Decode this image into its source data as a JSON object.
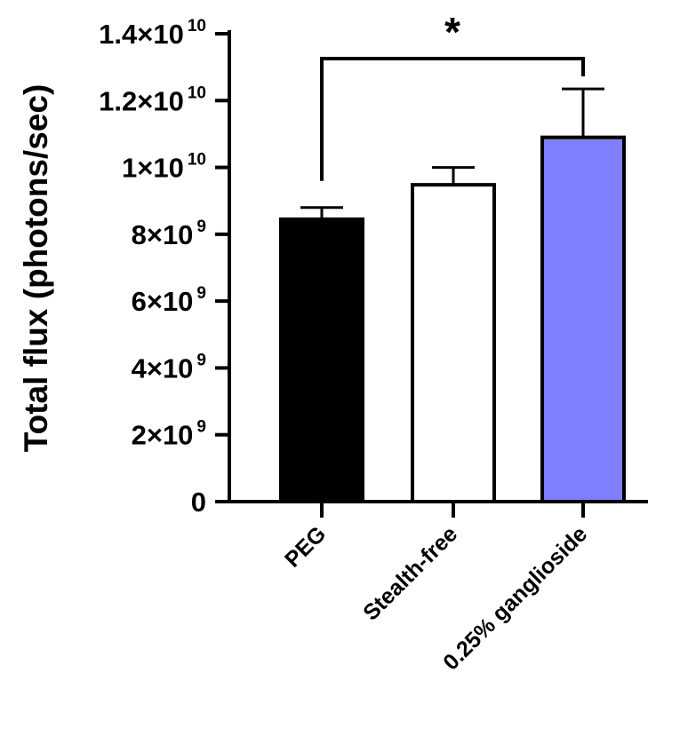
{
  "chart_data": {
    "type": "bar",
    "ylabel": "Total flux (photons/sec)",
    "ylim": [
      0,
      14000000000
    ],
    "y_ticks": [
      {
        "value": 0,
        "mantissa": "0",
        "exponent": ""
      },
      {
        "value": 2000000000,
        "mantissa": "2×10",
        "exponent": "9"
      },
      {
        "value": 4000000000,
        "mantissa": "4×10",
        "exponent": "9"
      },
      {
        "value": 6000000000,
        "mantissa": "6×10",
        "exponent": "9"
      },
      {
        "value": 8000000000,
        "mantissa": "8×10",
        "exponent": "9"
      },
      {
        "value": 10000000000,
        "mantissa": "1×10",
        "exponent": "10"
      },
      {
        "value": 12000000000,
        "mantissa": "1.2×10",
        "exponent": "10"
      },
      {
        "value": 14000000000,
        "mantissa": "1.4×10",
        "exponent": "10"
      }
    ],
    "categories": [
      "PEG",
      "Stealth-free",
      "0.25% ganglioside"
    ],
    "values": [
      8450000000,
      9480000000,
      10900000000
    ],
    "errors": [
      350000000,
      520000000,
      1450000000
    ],
    "bar_colors": [
      "#000000",
      "#ffffff",
      "#7f7ffe"
    ],
    "significance": {
      "from": 0,
      "to": 2,
      "label": "*"
    },
    "grid": false,
    "legend": "none"
  }
}
